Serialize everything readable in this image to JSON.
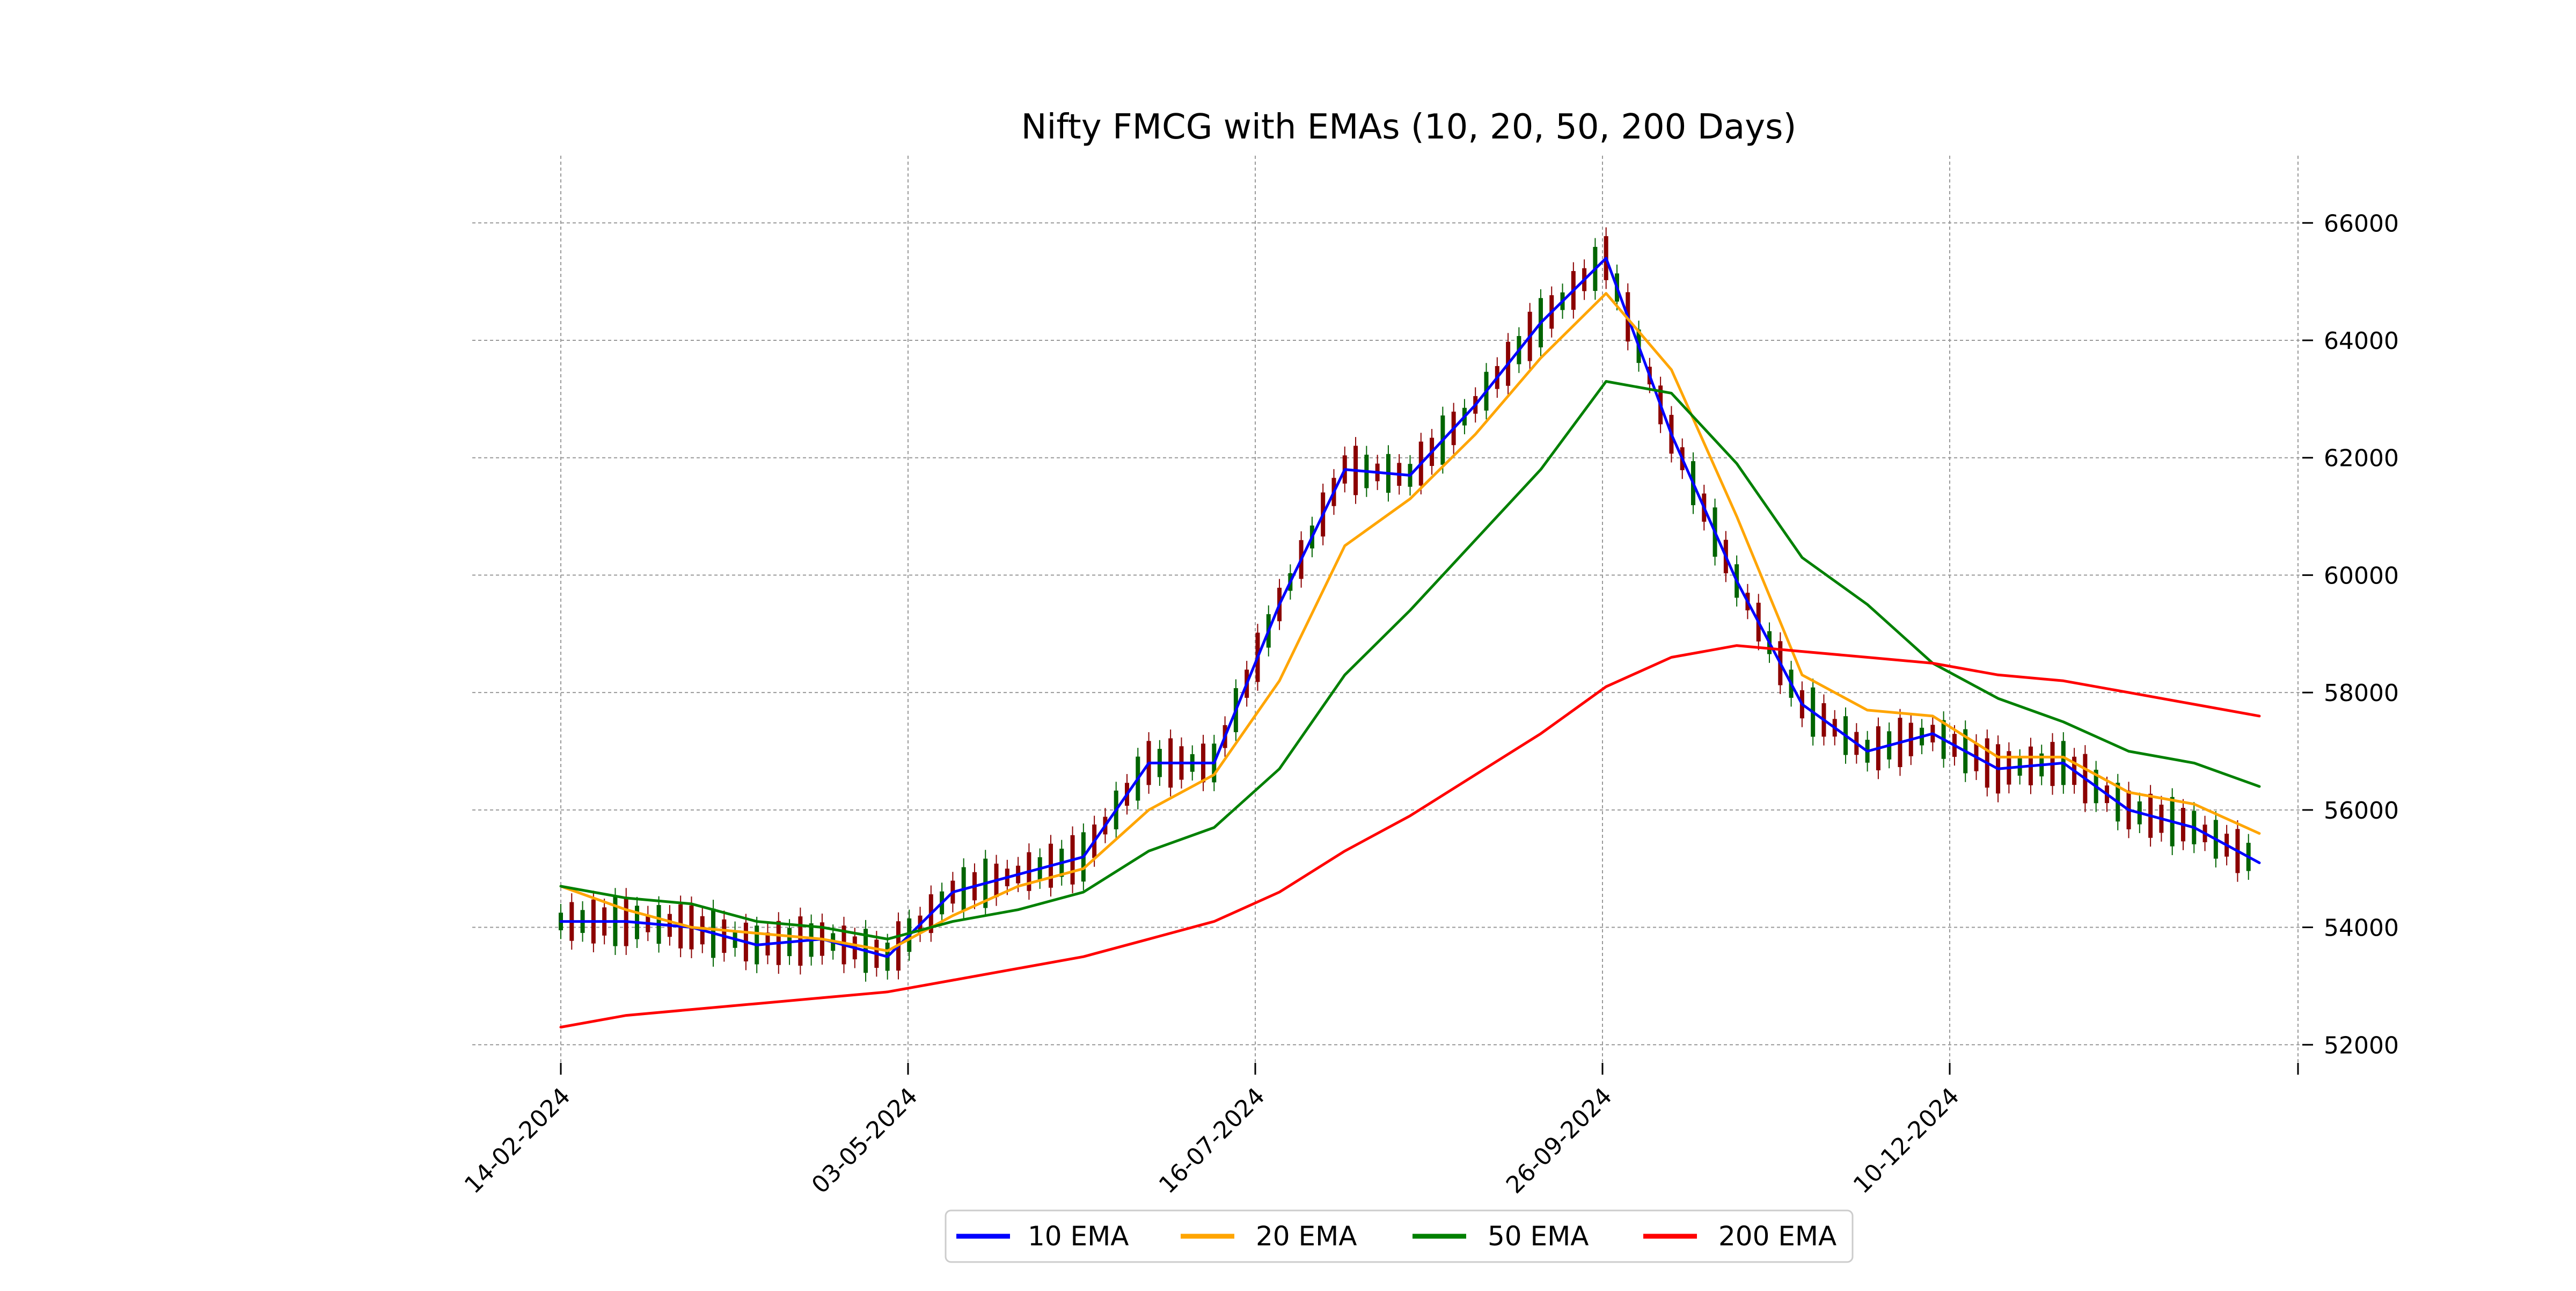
{
  "chart_data": {
    "type": "line",
    "title": "Nifty FMCG with EMAs (10, 20, 50, 200 Days)",
    "xlabel": "",
    "ylabel": "",
    "x_tick_labels": [
      "14-02-2024",
      "03-05-2024",
      "16-07-2024",
      "26-09-2024",
      "10-12-2024"
    ],
    "y_tick_labels": [
      "52000",
      "54000",
      "56000",
      "58000",
      "60000",
      "62000",
      "64000",
      "66000"
    ],
    "ylim": [
      51600,
      67100
    ],
    "grid": true,
    "legend_position": "bottom-center",
    "x": [
      "14-02-2024",
      "28-02-2024",
      "14-03-2024",
      "28-03-2024",
      "12-04-2024",
      "26-04-2024",
      "10-05-2024",
      "24-05-2024",
      "07-06-2024",
      "21-06-2024",
      "05-07-2024",
      "19-07-2024",
      "02-08-2024",
      "16-08-2024",
      "30-08-2024",
      "13-09-2024",
      "27-09-2024",
      "11-10-2024",
      "25-10-2024",
      "08-11-2024",
      "22-11-2024",
      "06-12-2024",
      "20-12-2024",
      "03-01-2025",
      "17-01-2025",
      "31-01-2025",
      "12-02-2025"
    ],
    "series": [
      {
        "name": "10 EMA",
        "color": "#0000ff",
        "values": [
          54100,
          54100,
          54000,
          53700,
          53800,
          53500,
          54600,
          54900,
          55200,
          56800,
          56800,
          59500,
          61800,
          61700,
          62900,
          64300,
          65400,
          62400,
          59900,
          57800,
          57000,
          57300,
          56700,
          56800,
          56000,
          55700,
          55100
        ]
      },
      {
        "name": "20 EMA",
        "color": "#ffa500",
        "values": [
          54700,
          54300,
          54000,
          53900,
          53800,
          53600,
          54200,
          54700,
          55000,
          56000,
          56600,
          58200,
          60500,
          61300,
          62400,
          63700,
          64800,
          63500,
          61000,
          58300,
          57700,
          57600,
          56900,
          56900,
          56300,
          56100,
          55600
        ]
      },
      {
        "name": "50 EMA",
        "color": "#008000",
        "values": [
          54700,
          54500,
          54400,
          54100,
          54000,
          53800,
          54100,
          54300,
          54600,
          55300,
          55700,
          56700,
          58300,
          59400,
          60600,
          61800,
          63300,
          63100,
          61900,
          60300,
          59500,
          58500,
          57900,
          57500,
          57000,
          56800,
          56400
        ]
      },
      {
        "name": "200 EMA",
        "color": "#ff0000",
        "values": [
          52300,
          52500,
          52600,
          52700,
          52800,
          52900,
          53100,
          53300,
          53500,
          53800,
          54100,
          54600,
          55300,
          55900,
          56600,
          57300,
          58100,
          58600,
          58800,
          58700,
          58600,
          58500,
          58300,
          58200,
          58000,
          57800,
          57600
        ]
      }
    ],
    "candles_note_removed": true
  }
}
